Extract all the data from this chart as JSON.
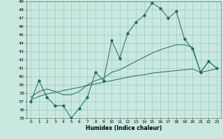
{
  "xlabel": "Humidex (Indice chaleur)",
  "background_color": "#c8e8e0",
  "grid_color": "#a0c8c0",
  "line_color": "#1a6b5a",
  "x": [
    0,
    1,
    2,
    3,
    4,
    5,
    6,
    7,
    8,
    9,
    10,
    11,
    12,
    13,
    14,
    15,
    16,
    17,
    18,
    19,
    20,
    21,
    22,
    23
  ],
  "y_main": [
    37,
    39.5,
    37.5,
    36.5,
    36.5,
    35.0,
    36.2,
    37.5,
    40.5,
    39.5,
    44.3,
    42.2,
    45.2,
    46.5,
    47.3,
    48.8,
    48.2,
    47.0,
    47.8,
    44.5,
    43.3,
    40.5,
    41.8,
    41.0
  ],
  "y_trend1": [
    37.5,
    38.2,
    38.5,
    38.2,
    37.8,
    37.8,
    38.2,
    39.0,
    39.5,
    39.8,
    40.5,
    40.8,
    41.3,
    41.8,
    42.3,
    42.8,
    43.2,
    43.5,
    43.8,
    43.8,
    43.5,
    40.5,
    41.8,
    41.0
  ],
  "y_trend2": [
    37.2,
    37.6,
    37.9,
    38.1,
    38.3,
    38.5,
    38.7,
    38.9,
    39.1,
    39.3,
    39.5,
    39.7,
    39.9,
    40.1,
    40.2,
    40.4,
    40.5,
    40.6,
    40.7,
    40.8,
    40.9,
    40.5,
    40.7,
    40.9
  ],
  "ylim": [
    35,
    49
  ],
  "xlim": [
    -0.5,
    23.5
  ],
  "yticks": [
    35,
    36,
    37,
    38,
    39,
    40,
    41,
    42,
    43,
    44,
    45,
    46,
    47,
    48,
    49
  ],
  "xticks": [
    0,
    1,
    2,
    3,
    4,
    5,
    6,
    7,
    8,
    9,
    10,
    11,
    12,
    13,
    14,
    15,
    16,
    17,
    18,
    19,
    20,
    21,
    22,
    23
  ]
}
